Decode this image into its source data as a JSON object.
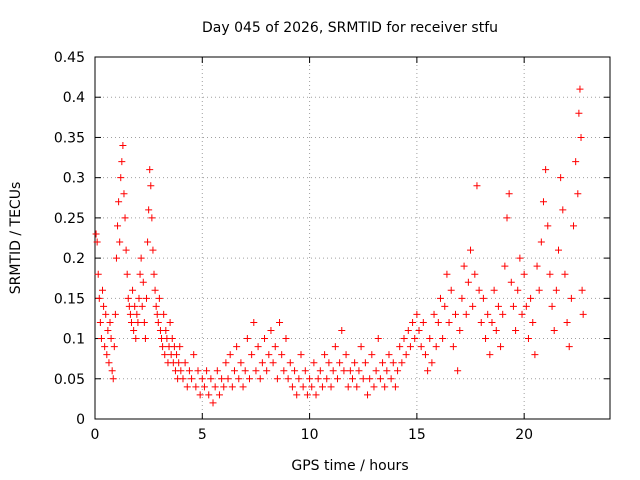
{
  "chart_data": {
    "type": "scatter",
    "title": "Day 045 of 2026, SRMTID for receiver stfu",
    "xlabel": "GPS time / hours",
    "ylabel": "SRMTID / TECUs",
    "xlim": [
      0,
      24
    ],
    "ylim": [
      0,
      0.45
    ],
    "xticks": [
      0,
      5,
      10,
      15,
      20
    ],
    "xtick_labels": [
      "0",
      "5",
      "10",
      "15",
      "20"
    ],
    "yticks": [
      0,
      0.05,
      0.1,
      0.15,
      0.2,
      0.25,
      0.3,
      0.35,
      0.4,
      0.45
    ],
    "ytick_labels": [
      "0",
      "0.05",
      "0.1",
      "0.15",
      "0.2",
      "0.25",
      "0.3",
      "0.35",
      "0.4",
      "0.45"
    ],
    "grid": true,
    "marker": "+",
    "color": "#ff0000",
    "series": [
      {
        "name": "SRMTID",
        "points": [
          [
            0.05,
            0.23
          ],
          [
            0.1,
            0.22
          ],
          [
            0.15,
            0.18
          ],
          [
            0.2,
            0.15
          ],
          [
            0.25,
            0.12
          ],
          [
            0.3,
            0.1
          ],
          [
            0.35,
            0.16
          ],
          [
            0.4,
            0.14
          ],
          [
            0.45,
            0.09
          ],
          [
            0.5,
            0.13
          ],
          [
            0.55,
            0.08
          ],
          [
            0.6,
            0.11
          ],
          [
            0.65,
            0.07
          ],
          [
            0.7,
            0.12
          ],
          [
            0.75,
            0.1
          ],
          [
            0.8,
            0.06
          ],
          [
            0.85,
            0.05
          ],
          [
            0.9,
            0.09
          ],
          [
            0.95,
            0.13
          ],
          [
            1.0,
            0.2
          ],
          [
            1.05,
            0.24
          ],
          [
            1.1,
            0.27
          ],
          [
            1.15,
            0.22
          ],
          [
            1.2,
            0.3
          ],
          [
            1.25,
            0.32
          ],
          [
            1.3,
            0.34
          ],
          [
            1.35,
            0.28
          ],
          [
            1.4,
            0.25
          ],
          [
            1.45,
            0.21
          ],
          [
            1.5,
            0.18
          ],
          [
            1.55,
            0.15
          ],
          [
            1.6,
            0.14
          ],
          [
            1.65,
            0.13
          ],
          [
            1.7,
            0.12
          ],
          [
            1.75,
            0.16
          ],
          [
            1.8,
            0.11
          ],
          [
            1.85,
            0.14
          ],
          [
            1.9,
            0.1
          ],
          [
            1.95,
            0.13
          ],
          [
            2.0,
            0.12
          ],
          [
            2.05,
            0.15
          ],
          [
            2.1,
            0.18
          ],
          [
            2.15,
            0.2
          ],
          [
            2.2,
            0.14
          ],
          [
            2.25,
            0.17
          ],
          [
            2.3,
            0.12
          ],
          [
            2.35,
            0.1
          ],
          [
            2.4,
            0.15
          ],
          [
            2.45,
            0.22
          ],
          [
            2.5,
            0.26
          ],
          [
            2.55,
            0.31
          ],
          [
            2.6,
            0.29
          ],
          [
            2.65,
            0.25
          ],
          [
            2.7,
            0.21
          ],
          [
            2.75,
            0.18
          ],
          [
            2.8,
            0.16
          ],
          [
            2.85,
            0.14
          ],
          [
            2.9,
            0.13
          ],
          [
            2.95,
            0.12
          ],
          [
            3.0,
            0.15
          ],
          [
            3.05,
            0.11
          ],
          [
            3.1,
            0.1
          ],
          [
            3.15,
            0.09
          ],
          [
            3.2,
            0.13
          ],
          [
            3.25,
            0.08
          ],
          [
            3.3,
            0.11
          ],
          [
            3.35,
            0.1
          ],
          [
            3.4,
            0.07
          ],
          [
            3.45,
            0.09
          ],
          [
            3.5,
            0.12
          ],
          [
            3.55,
            0.08
          ],
          [
            3.6,
            0.1
          ],
          [
            3.65,
            0.07
          ],
          [
            3.7,
            0.09
          ],
          [
            3.75,
            0.06
          ],
          [
            3.8,
            0.08
          ],
          [
            3.85,
            0.05
          ],
          [
            3.9,
            0.07
          ],
          [
            3.95,
            0.09
          ],
          [
            4.0,
            0.06
          ],
          [
            4.1,
            0.05
          ],
          [
            4.2,
            0.07
          ],
          [
            4.3,
            0.04
          ],
          [
            4.4,
            0.06
          ],
          [
            4.5,
            0.05
          ],
          [
            4.6,
            0.08
          ],
          [
            4.7,
            0.04
          ],
          [
            4.8,
            0.06
          ],
          [
            4.9,
            0.03
          ],
          [
            5.0,
            0.05
          ],
          [
            5.1,
            0.04
          ],
          [
            5.2,
            0.06
          ],
          [
            5.3,
            0.03
          ],
          [
            5.4,
            0.05
          ],
          [
            5.5,
            0.02
          ],
          [
            5.6,
            0.04
          ],
          [
            5.7,
            0.06
          ],
          [
            5.8,
            0.03
          ],
          [
            5.9,
            0.05
          ],
          [
            6.0,
            0.04
          ],
          [
            6.1,
            0.07
          ],
          [
            6.2,
            0.05
          ],
          [
            6.3,
            0.08
          ],
          [
            6.4,
            0.04
          ],
          [
            6.5,
            0.06
          ],
          [
            6.6,
            0.09
          ],
          [
            6.7,
            0.05
          ],
          [
            6.8,
            0.07
          ],
          [
            6.9,
            0.04
          ],
          [
            7.0,
            0.06
          ],
          [
            7.1,
            0.1
          ],
          [
            7.2,
            0.05
          ],
          [
            7.3,
            0.08
          ],
          [
            7.4,
            0.12
          ],
          [
            7.5,
            0.06
          ],
          [
            7.6,
            0.09
          ],
          [
            7.7,
            0.05
          ],
          [
            7.8,
            0.07
          ],
          [
            7.9,
            0.1
          ],
          [
            8.0,
            0.06
          ],
          [
            8.1,
            0.08
          ],
          [
            8.2,
            0.11
          ],
          [
            8.3,
            0.07
          ],
          [
            8.4,
            0.09
          ],
          [
            8.5,
            0.05
          ],
          [
            8.6,
            0.12
          ],
          [
            8.7,
            0.08
          ],
          [
            8.8,
            0.06
          ],
          [
            8.9,
            0.1
          ],
          [
            9.0,
            0.05
          ],
          [
            9.1,
            0.07
          ],
          [
            9.2,
            0.04
          ],
          [
            9.3,
            0.06
          ],
          [
            9.4,
            0.03
          ],
          [
            9.5,
            0.05
          ],
          [
            9.6,
            0.08
          ],
          [
            9.7,
            0.04
          ],
          [
            9.8,
            0.06
          ],
          [
            9.9,
            0.03
          ],
          [
            10.0,
            0.05
          ],
          [
            10.1,
            0.04
          ],
          [
            10.2,
            0.07
          ],
          [
            10.3,
            0.03
          ],
          [
            10.4,
            0.05
          ],
          [
            10.5,
            0.06
          ],
          [
            10.6,
            0.04
          ],
          [
            10.7,
            0.08
          ],
          [
            10.8,
            0.05
          ],
          [
            10.9,
            0.07
          ],
          [
            11.0,
            0.04
          ],
          [
            11.1,
            0.06
          ],
          [
            11.2,
            0.09
          ],
          [
            11.3,
            0.05
          ],
          [
            11.4,
            0.07
          ],
          [
            11.5,
            0.11
          ],
          [
            11.6,
            0.06
          ],
          [
            11.7,
            0.08
          ],
          [
            11.8,
            0.04
          ],
          [
            11.9,
            0.06
          ],
          [
            12.0,
            0.05
          ],
          [
            12.1,
            0.07
          ],
          [
            12.2,
            0.04
          ],
          [
            12.3,
            0.06
          ],
          [
            12.4,
            0.09
          ],
          [
            12.5,
            0.05
          ],
          [
            12.6,
            0.07
          ],
          [
            12.7,
            0.03
          ],
          [
            12.8,
            0.05
          ],
          [
            12.9,
            0.08
          ],
          [
            13.0,
            0.04
          ],
          [
            13.1,
            0.06
          ],
          [
            13.2,
            0.1
          ],
          [
            13.3,
            0.05
          ],
          [
            13.4,
            0.07
          ],
          [
            13.5,
            0.04
          ],
          [
            13.6,
            0.06
          ],
          [
            13.7,
            0.08
          ],
          [
            13.8,
            0.05
          ],
          [
            13.9,
            0.07
          ],
          [
            14.0,
            0.04
          ],
          [
            14.1,
            0.06
          ],
          [
            14.2,
            0.09
          ],
          [
            14.3,
            0.07
          ],
          [
            14.4,
            0.1
          ],
          [
            14.5,
            0.08
          ],
          [
            14.6,
            0.11
          ],
          [
            14.7,
            0.09
          ],
          [
            14.8,
            0.12
          ],
          [
            14.9,
            0.1
          ],
          [
            15.0,
            0.13
          ],
          [
            15.1,
            0.11
          ],
          [
            15.2,
            0.09
          ],
          [
            15.3,
            0.12
          ],
          [
            15.4,
            0.08
          ],
          [
            15.5,
            0.06
          ],
          [
            15.6,
            0.1
          ],
          [
            15.7,
            0.07
          ],
          [
            15.8,
            0.13
          ],
          [
            15.9,
            0.09
          ],
          [
            16.0,
            0.12
          ],
          [
            16.1,
            0.15
          ],
          [
            16.2,
            0.1
          ],
          [
            16.3,
            0.14
          ],
          [
            16.4,
            0.18
          ],
          [
            16.5,
            0.12
          ],
          [
            16.6,
            0.16
          ],
          [
            16.7,
            0.09
          ],
          [
            16.8,
            0.13
          ],
          [
            16.9,
            0.06
          ],
          [
            17.0,
            0.11
          ],
          [
            17.1,
            0.15
          ],
          [
            17.2,
            0.19
          ],
          [
            17.3,
            0.13
          ],
          [
            17.4,
            0.17
          ],
          [
            17.5,
            0.21
          ],
          [
            17.6,
            0.14
          ],
          [
            17.7,
            0.18
          ],
          [
            17.8,
            0.29
          ],
          [
            17.9,
            0.16
          ],
          [
            18.0,
            0.12
          ],
          [
            18.1,
            0.15
          ],
          [
            18.2,
            0.1
          ],
          [
            18.3,
            0.13
          ],
          [
            18.4,
            0.08
          ],
          [
            18.5,
            0.12
          ],
          [
            18.6,
            0.16
          ],
          [
            18.7,
            0.11
          ],
          [
            18.8,
            0.14
          ],
          [
            18.9,
            0.09
          ],
          [
            19.0,
            0.13
          ],
          [
            19.1,
            0.19
          ],
          [
            19.2,
            0.25
          ],
          [
            19.3,
            0.28
          ],
          [
            19.4,
            0.17
          ],
          [
            19.5,
            0.14
          ],
          [
            19.6,
            0.11
          ],
          [
            19.7,
            0.16
          ],
          [
            19.8,
            0.2
          ],
          [
            19.9,
            0.13
          ],
          [
            20.0,
            0.18
          ],
          [
            20.1,
            0.14
          ],
          [
            20.2,
            0.1
          ],
          [
            20.3,
            0.15
          ],
          [
            20.4,
            0.12
          ],
          [
            20.5,
            0.08
          ],
          [
            20.6,
            0.19
          ],
          [
            20.7,
            0.16
          ],
          [
            20.8,
            0.22
          ],
          [
            20.9,
            0.27
          ],
          [
            21.0,
            0.31
          ],
          [
            21.1,
            0.24
          ],
          [
            21.2,
            0.18
          ],
          [
            21.3,
            0.14
          ],
          [
            21.4,
            0.11
          ],
          [
            21.5,
            0.16
          ],
          [
            21.6,
            0.21
          ],
          [
            21.7,
            0.3
          ],
          [
            21.8,
            0.26
          ],
          [
            21.9,
            0.18
          ],
          [
            22.0,
            0.12
          ],
          [
            22.1,
            0.09
          ],
          [
            22.2,
            0.15
          ],
          [
            22.3,
            0.24
          ],
          [
            22.4,
            0.32
          ],
          [
            22.5,
            0.28
          ],
          [
            22.55,
            0.38
          ],
          [
            22.6,
            0.41
          ],
          [
            22.65,
            0.35
          ],
          [
            22.7,
            0.16
          ],
          [
            22.75,
            0.13
          ]
        ]
      }
    ]
  }
}
